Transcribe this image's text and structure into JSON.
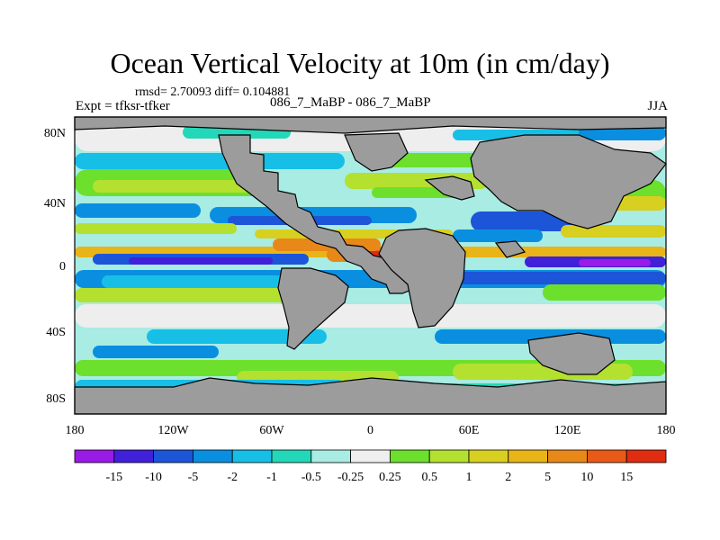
{
  "title": "Ocean Vertical Velocity at 10m (in cm/day)",
  "stats": "rmsd= 2.70093 diff= 0.104881",
  "expt": "Expt = tfksr-tfker",
  "comparison": "086_7_MaBP - 086_7_MaBP",
  "season": "JJA",
  "lat_labels": [
    "80N",
    "40N",
    "0",
    "40S",
    "80S"
  ],
  "lon_labels": [
    "180",
    "120W",
    "60W",
    "0",
    "60E",
    "120E",
    "180"
  ],
  "colorbar": {
    "labels": [
      "-15",
      "-10",
      "-5",
      "-2",
      "-1",
      "-0.5",
      "-0.25",
      "0.25",
      "0.5",
      "1",
      "2",
      "5",
      "10",
      "15"
    ],
    "colors": [
      "#9a1ae6",
      "#4020d8",
      "#1c55d8",
      "#0a8fe0",
      "#17bfe6",
      "#23d8b8",
      "#a8ece4",
      "#eeeeee",
      "#6ce02c",
      "#b4e030",
      "#d8d020",
      "#e8b418",
      "#e88818",
      "#e85a18",
      "#e02c10"
    ]
  },
  "map_colors": {
    "land": "#9c9c9c",
    "coast": "#000000",
    "ocean_base": "#a8ece4"
  }
}
